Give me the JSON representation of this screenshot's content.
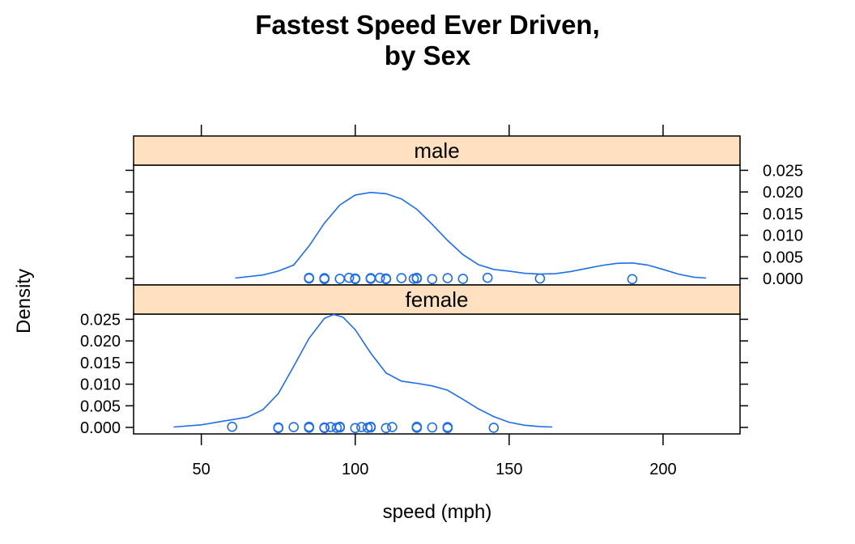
{
  "chart_data": {
    "type": "line",
    "title_lines": [
      "Fastest Speed Ever Driven,",
      "by Sex"
    ],
    "xlabel": "speed (mph)",
    "ylabel": "Density",
    "xlim": [
      28,
      225
    ],
    "ylim": [
      -0.0015,
      0.0262
    ],
    "x_ticks": [
      50,
      100,
      150,
      200
    ],
    "x_tick_labels": [
      "50",
      "100",
      "150",
      "200"
    ],
    "y_ticks": [
      0,
      0.005,
      0.01,
      0.015,
      0.02,
      0.025
    ],
    "y_tick_labels": [
      "0.000",
      "0.005",
      "0.010",
      "0.015",
      "0.020",
      "0.025"
    ],
    "grid": false,
    "colors": {
      "line": "#1f6ee8",
      "strip": "#ffe0c0"
    },
    "panels": [
      {
        "strip_label": "male",
        "density": {
          "x": [
            61,
            70,
            75,
            80,
            85,
            90,
            95,
            100,
            105,
            110,
            115,
            120,
            125,
            130,
            135,
            140,
            145,
            150,
            155,
            160,
            165,
            170,
            175,
            180,
            185,
            190,
            195,
            200,
            205,
            210,
            214
          ],
          "y": [
            0.0001,
            0.0008,
            0.0017,
            0.0031,
            0.0075,
            0.0128,
            0.017,
            0.0193,
            0.0199,
            0.0196,
            0.0184,
            0.016,
            0.0125,
            0.0088,
            0.0055,
            0.0032,
            0.0021,
            0.0017,
            0.0012,
            0.001,
            0.0011,
            0.0016,
            0.0023,
            0.003,
            0.0035,
            0.0036,
            0.0031,
            0.0021,
            0.001,
            0.0003,
            0.0001
          ]
        },
        "points": [
          85,
          85,
          90,
          90,
          95,
          98,
          100,
          100,
          105,
          105,
          108,
          110,
          110,
          115,
          119,
          120,
          120,
          125,
          130,
          135,
          143,
          160,
          190
        ]
      },
      {
        "strip_label": "female",
        "density": {
          "x": [
            41,
            50,
            55,
            60,
            65,
            70,
            75,
            80,
            85,
            90,
            93,
            96,
            100,
            105,
            110,
            115,
            120,
            125,
            130,
            135,
            140,
            145,
            150,
            155,
            160,
            164
          ],
          "y": [
            0.0001,
            0.0006,
            0.0012,
            0.0018,
            0.0024,
            0.0041,
            0.0078,
            0.0141,
            0.0206,
            0.0252,
            0.0261,
            0.0255,
            0.0226,
            0.0172,
            0.0126,
            0.0107,
            0.0102,
            0.0096,
            0.0086,
            0.0065,
            0.0043,
            0.0025,
            0.0012,
            0.0005,
            0.0002,
            0.0001
          ]
        },
        "points": [
          60,
          75,
          75,
          80,
          85,
          85,
          90,
          90,
          92,
          94,
          95,
          95,
          100,
          102,
          104,
          105,
          105,
          110,
          112,
          120,
          120,
          125,
          130,
          130,
          145
        ]
      }
    ]
  }
}
